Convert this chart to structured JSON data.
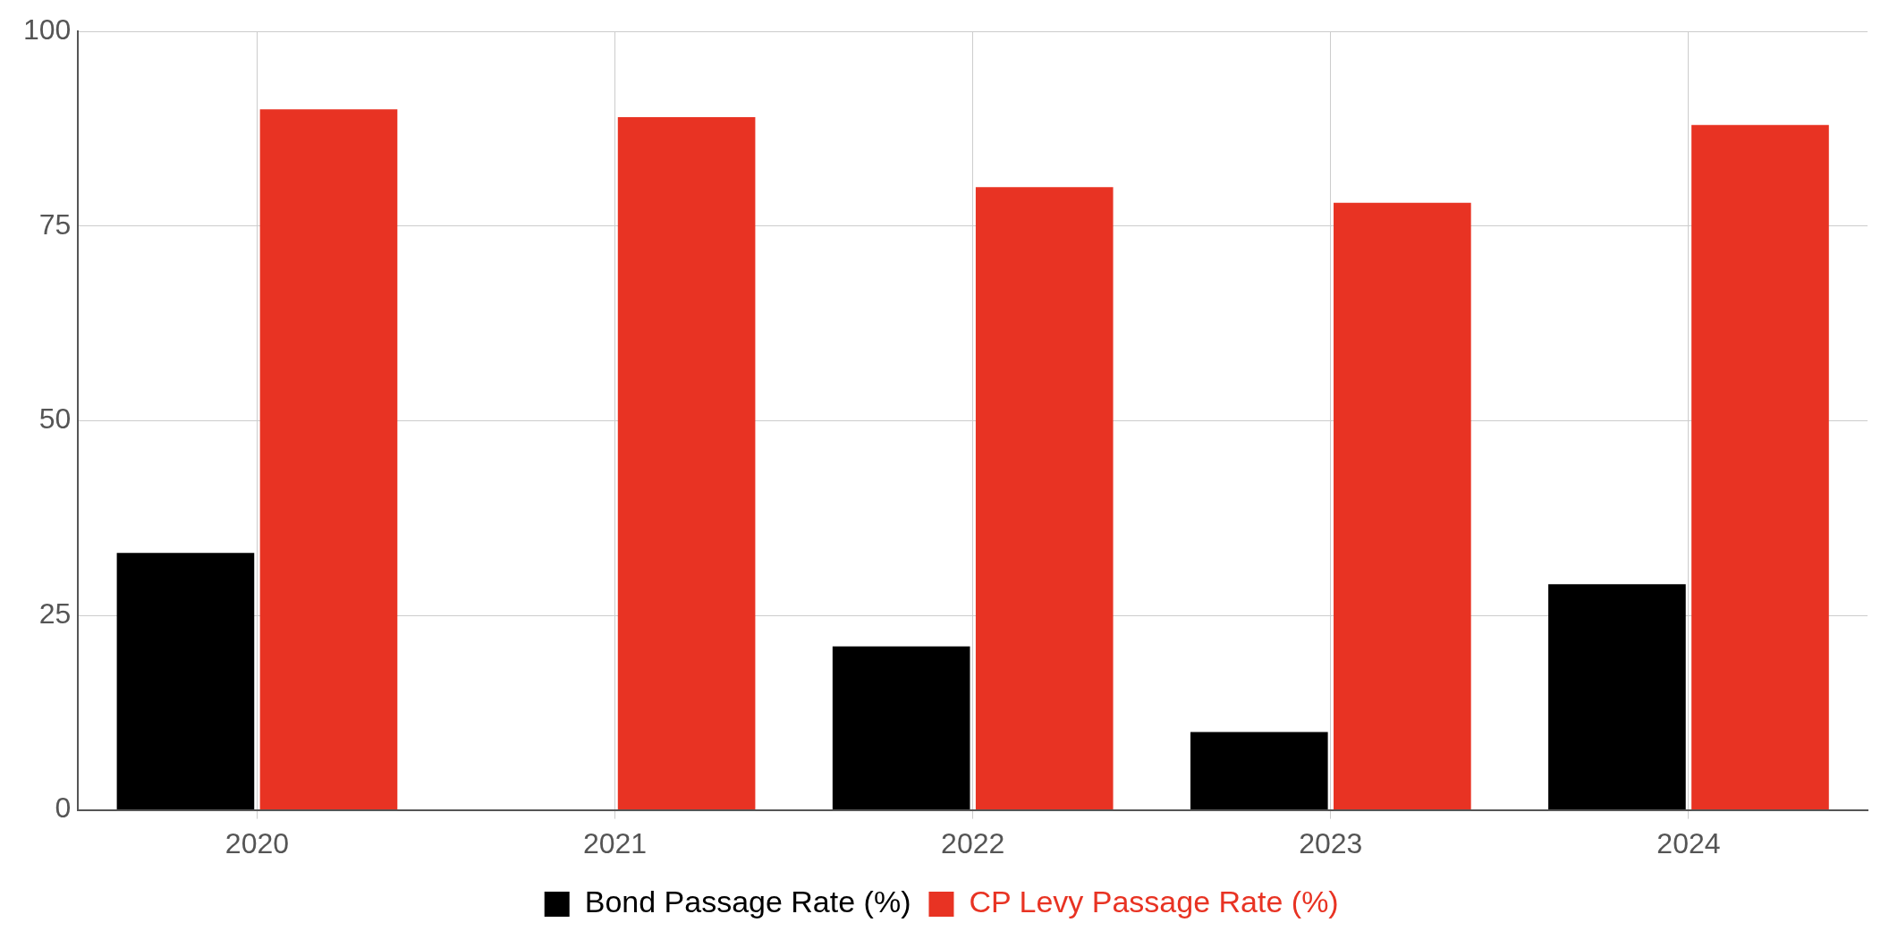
{
  "chart_data": {
    "type": "bar",
    "categories": [
      "2020",
      "2021",
      "2022",
      "2023",
      "2024"
    ],
    "series": [
      {
        "name": "Bond Passage Rate (%)",
        "color": "#000000",
        "values": [
          33,
          0,
          21,
          10,
          29
        ]
      },
      {
        "name": "CP Levy Passage Rate (%)",
        "color": "#e83323",
        "values": [
          90,
          89,
          80,
          78,
          88
        ]
      }
    ],
    "ylim": [
      0,
      100
    ],
    "yticks": [
      0,
      25,
      50,
      75,
      100
    ],
    "grid": true,
    "legend": "bottom"
  }
}
